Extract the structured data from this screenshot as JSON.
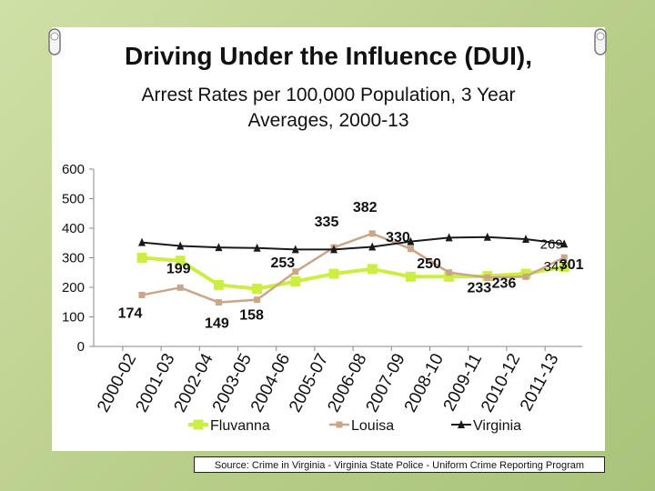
{
  "title": "Driving Under the Influence (DUI),",
  "subtitle_line1": "Arrest Rates per 100,000 Population, 3 Year",
  "subtitle_line2": "Averages, 2000-13",
  "source": "Source: Crime in Virginia - Virginia State Police - Uniform Crime Reporting Program",
  "colors": {
    "fluvanna": "#ccee44",
    "louisa": "#c9a58a",
    "virginia": "#1a1a1a",
    "background": "#b9cf8c"
  },
  "chart_data": {
    "type": "line",
    "title": "Driving Under the Influence (DUI), Arrest Rates per 100,000 Population, 3 Year Averages, 2000-13",
    "categories": [
      "2000-02",
      "2001-03",
      "2002-04",
      "2003-05",
      "2004-06",
      "2005-07",
      "2006-08",
      "2007-09",
      "2008-10",
      "2009-11",
      "2010-12",
      "2011-13"
    ],
    "ylim": [
      0,
      600
    ],
    "yticks": [
      0,
      100,
      200,
      300,
      400,
      500,
      600
    ],
    "legend_position": "bottom",
    "series": [
      {
        "name": "Fluvanna",
        "marker": "square",
        "values": [
          300,
          290,
          208,
          195,
          220,
          246,
          262,
          236,
          236,
          238,
          246,
          269
        ],
        "labels": [
          "",
          "",
          "",
          "",
          "",
          "",
          "",
          "",
          "",
          "",
          "",
          "269"
        ]
      },
      {
        "name": "Louisa",
        "marker": "square",
        "values": [
          174,
          199,
          149,
          158,
          253,
          335,
          382,
          330,
          250,
          233,
          236,
          301
        ],
        "labels": [
          "174",
          "199",
          "149",
          "158",
          "253",
          "335",
          "382",
          "330",
          "250",
          "233",
          "236",
          "301"
        ]
      },
      {
        "name": "Virginia",
        "marker": "triangle",
        "values": [
          352,
          340,
          335,
          333,
          328,
          328,
          337,
          355,
          368,
          370,
          363,
          347
        ],
        "labels": [
          "",
          "",
          "",
          "",
          "",
          "",
          "",
          "",
          "",
          "",
          "",
          "347"
        ]
      }
    ]
  }
}
